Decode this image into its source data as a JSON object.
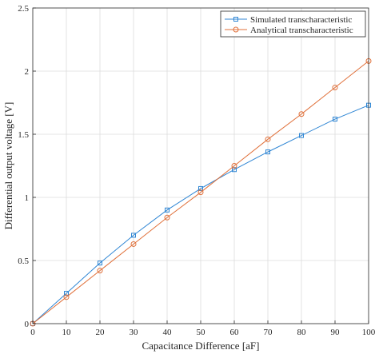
{
  "chart_data": {
    "type": "line",
    "title": "",
    "xlabel": "Capacitance Difference [aF]",
    "ylabel": "Differential output voltage [V]",
    "xlim": [
      0,
      100
    ],
    "ylim": [
      0,
      2.5
    ],
    "x_ticks": [
      0,
      10,
      20,
      30,
      40,
      50,
      60,
      70,
      80,
      90,
      100
    ],
    "y_ticks": [
      0,
      0.5,
      1,
      1.5,
      2,
      2.5
    ],
    "y_tick_labels": [
      "0",
      "0.5",
      "1",
      "1.5",
      "2",
      "2.5"
    ],
    "grid": true,
    "legend_position": "top-right",
    "x": [
      0,
      10,
      20,
      30,
      40,
      50,
      60,
      70,
      80,
      90,
      100
    ],
    "series": [
      {
        "name": "Simulated transcharacteristic",
        "marker": "square",
        "color": "#2f86d4",
        "values": [
          0,
          0.24,
          0.48,
          0.7,
          0.9,
          1.07,
          1.22,
          1.36,
          1.49,
          1.62,
          1.73
        ]
      },
      {
        "name": "Analytical transcharacteristic",
        "marker": "circle",
        "color": "#e0703a",
        "values": [
          0,
          0.21,
          0.42,
          0.63,
          0.84,
          1.04,
          1.25,
          1.46,
          1.66,
          1.87,
          2.08
        ]
      }
    ]
  }
}
